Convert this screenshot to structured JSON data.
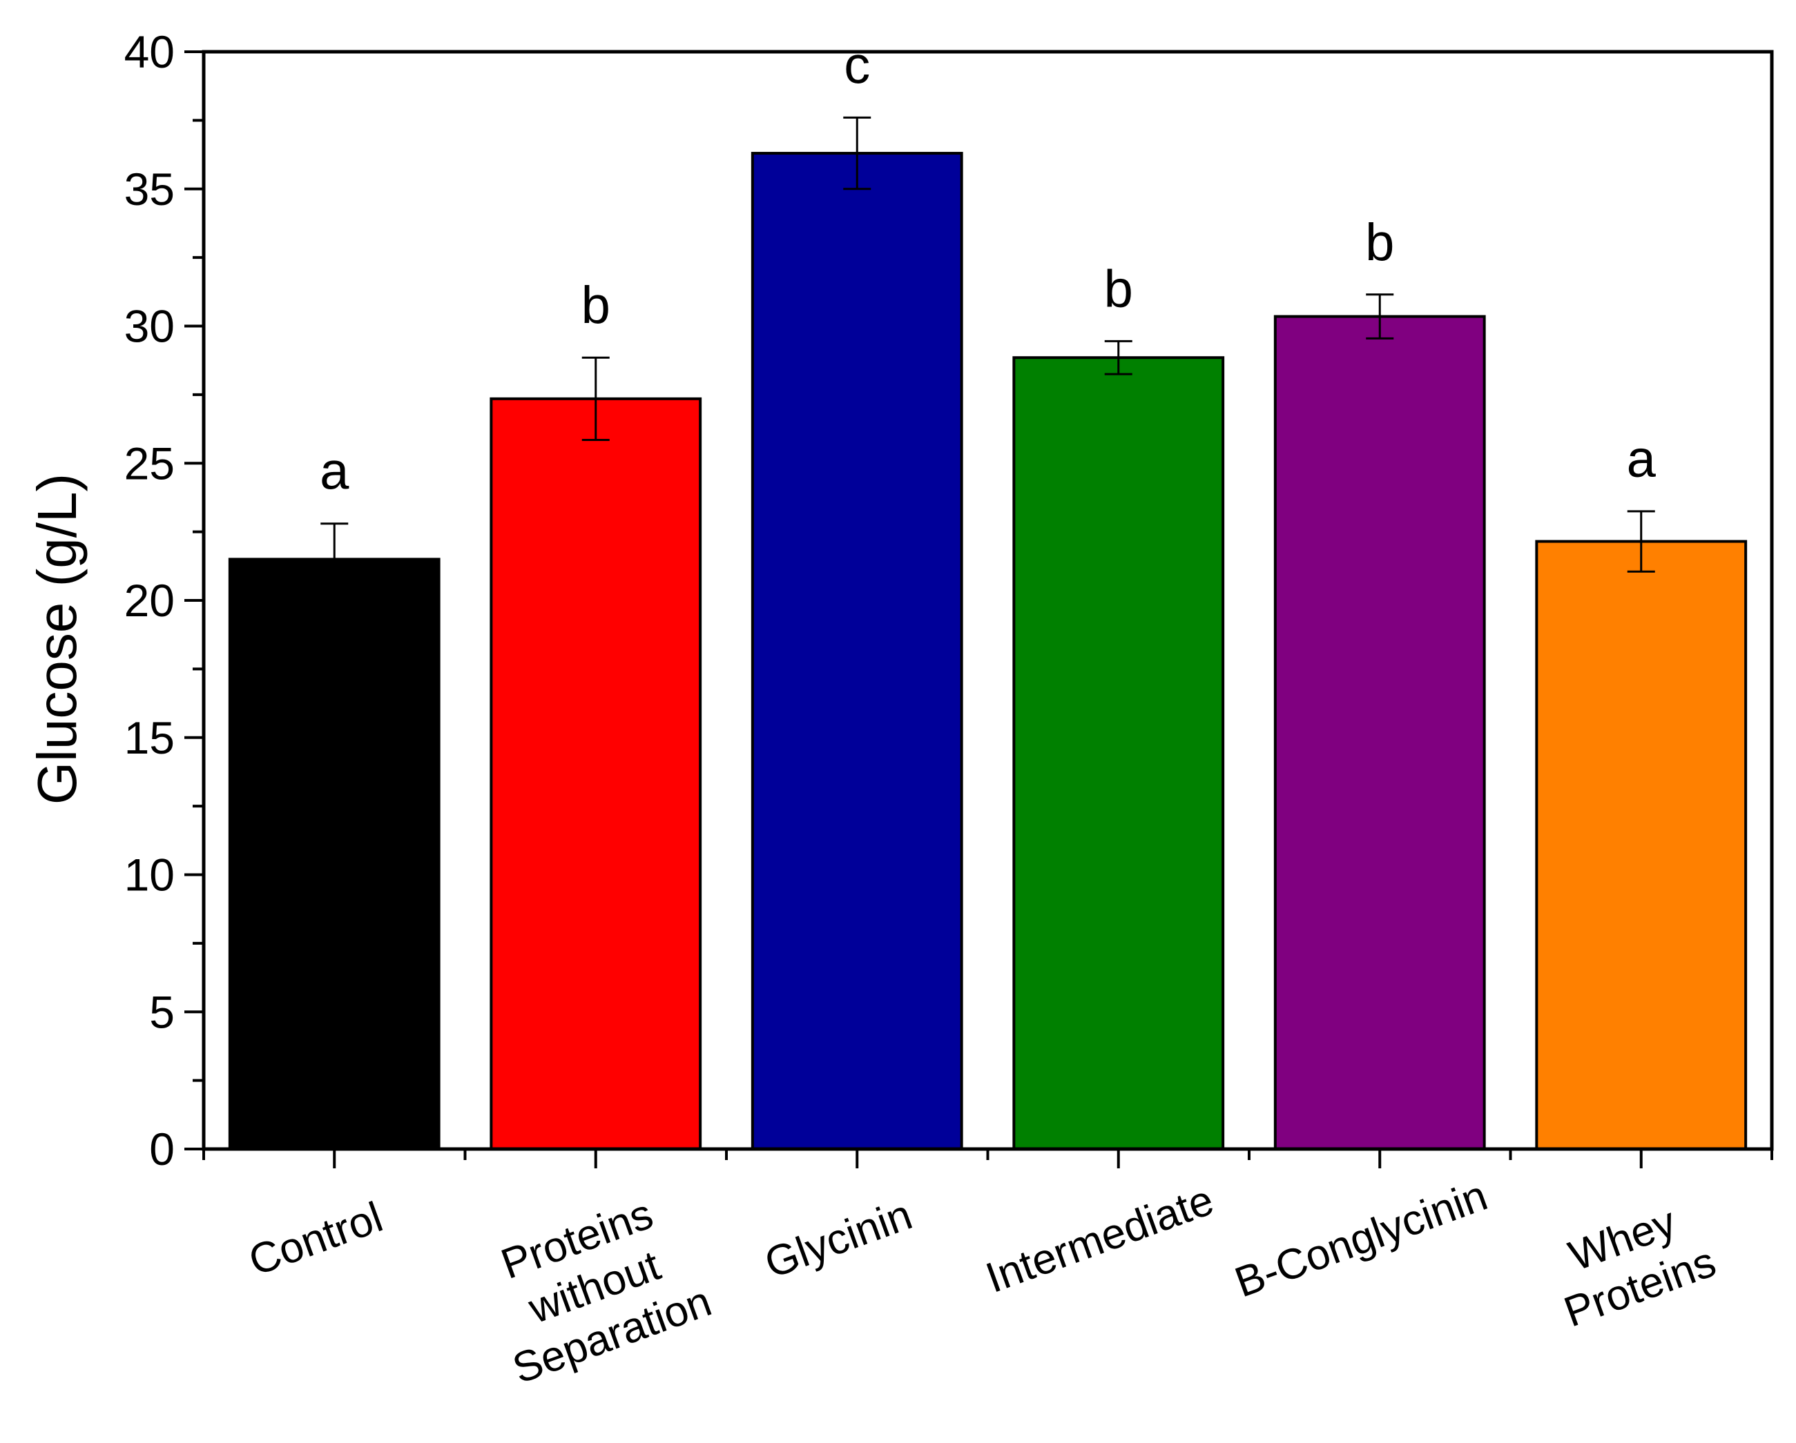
{
  "chart_data": {
    "type": "bar",
    "title": "",
    "xlabel": "",
    "ylabel": "Glucose (g/L)",
    "ylim": [
      0,
      40
    ],
    "yticks": [
      "0",
      "5",
      "10",
      "15",
      "20",
      "25",
      "30",
      "35",
      "40"
    ],
    "categories": [
      [
        "Control"
      ],
      [
        "Proteins",
        "without",
        "Separation"
      ],
      [
        "Glycinin"
      ],
      [
        "Intermediate"
      ],
      [
        "B-Conglycinin"
      ],
      [
        "Whey",
        "Proteins"
      ]
    ],
    "values": [
      21.5,
      27.35,
      36.3,
      28.85,
      30.35,
      22.15
    ],
    "errors": [
      1.3,
      1.5,
      1.3,
      0.6,
      0.8,
      1.1
    ],
    "significance": [
      "a",
      "b",
      "c",
      "b",
      "b",
      "a"
    ],
    "colors": [
      "#000000",
      "#ff0000",
      "#000099",
      "#008000",
      "#800080",
      "#ff8000"
    ]
  }
}
